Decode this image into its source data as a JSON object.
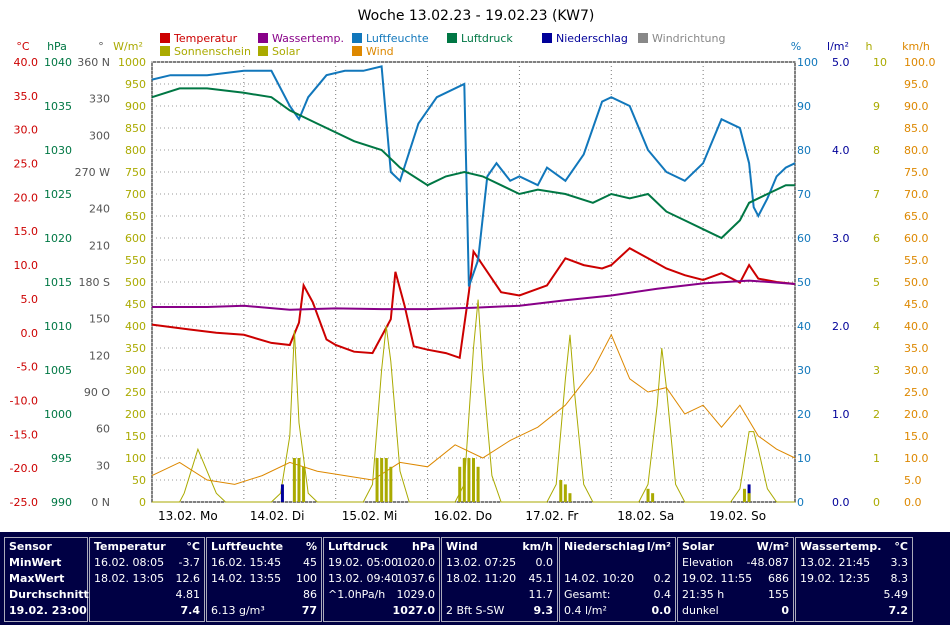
{
  "title": "Woche 13.02.23 - 19.02.23 (KW7)",
  "legend": [
    {
      "label": "Temperatur",
      "color": "#cc0000"
    },
    {
      "label": "Wassertemp.",
      "color": "#880088"
    },
    {
      "label": "Luftfeuchte",
      "color": "#1177bb"
    },
    {
      "label": "Luftdruck",
      "color": "#007744"
    },
    {
      "label": "Niederschlag",
      "color": "#000099"
    },
    {
      "label": "Windrichtung",
      "color": "#888888"
    },
    {
      "label": "Sonnenschein",
      "color": "#aaaa00"
    },
    {
      "label": "Solar",
      "color": "#aaaa00"
    },
    {
      "label": "Wind",
      "color": "#dd8800"
    }
  ],
  "axes": {
    "temp": {
      "unit": "°C",
      "color": "#cc0000",
      "ticks": [
        "40.0",
        "35.0",
        "30.0",
        "25.0",
        "20.0",
        "15.0",
        "10.0",
        "5.0",
        "0.0",
        "-5.0",
        "-10.0",
        "-15.0",
        "-20.0",
        "-25.0"
      ]
    },
    "pressure": {
      "unit": "hPa",
      "color": "#007744",
      "ticks": [
        "1040",
        "1035",
        "1030",
        "1025",
        "1020",
        "1015",
        "1010",
        "1005",
        "1000",
        "995",
        "990"
      ]
    },
    "direction": {
      "unit": "°",
      "color": "#555555",
      "ticks": [
        "360 N",
        "330",
        "300",
        "270 W",
        "240",
        "210",
        "180 S",
        "150",
        "120",
        "90 O",
        "60",
        "30",
        "0 N"
      ]
    },
    "solar": {
      "unit": "W/m²",
      "color": "#aaaa00",
      "ticks": [
        "1000",
        "950",
        "900",
        "850",
        "800",
        "750",
        "700",
        "650",
        "600",
        "550",
        "500",
        "450",
        "400",
        "350",
        "300",
        "250",
        "200",
        "150",
        "100",
        "50",
        "0"
      ]
    },
    "humidity": {
      "unit": "%",
      "color": "#1177bb",
      "ticks": [
        "100",
        "90",
        "80",
        "70",
        "60",
        "50",
        "40",
        "30",
        "20",
        "10",
        "0"
      ]
    },
    "rain": {
      "unit": "l/m²",
      "color": "#000099",
      "ticks": [
        "5.0",
        "4.0",
        "3.0",
        "2.0",
        "1.0",
        "0.0"
      ]
    },
    "sun": {
      "unit": "h",
      "color": "#aaaa00",
      "ticks": [
        "10",
        "9",
        "8",
        "7",
        "6",
        "5",
        "4",
        "3",
        "2",
        "1",
        "0"
      ]
    },
    "wind": {
      "unit": "km/h",
      "color": "#dd8800",
      "ticks": [
        "100.0",
        "95.0",
        "90.0",
        "85.0",
        "80.0",
        "75.0",
        "70.0",
        "65.0",
        "60.0",
        "55.0",
        "50.0",
        "45.0",
        "40.0",
        "35.0",
        "30.0",
        "25.0",
        "20.0",
        "15.0",
        "10.0",
        "5.0",
        "0.0"
      ]
    }
  },
  "x_labels": [
    "13.02.  Mo",
    "14.02.  Di",
    "15.02.  Mi",
    "16.02.  Do",
    "17.02.  Fr",
    "18.02.  Sa",
    "19.02.  So"
  ],
  "chart_data": {
    "type": "line",
    "title": "Woche 13.02.23 - 19.02.23 (KW7)",
    "x_unit": "days since 13.02. 00:00",
    "xlim": [
      0,
      7
    ],
    "series": [
      {
        "name": "Temperatur",
        "unit": "°C",
        "ylim": [
          -25,
          40
        ],
        "x": [
          0,
          0.4,
          0.7,
          1.0,
          1.3,
          1.5,
          1.6,
          1.65,
          1.75,
          1.9,
          2.0,
          2.2,
          2.4,
          2.6,
          2.65,
          2.75,
          2.85,
          3.0,
          3.2,
          3.35,
          3.45,
          3.5,
          3.6,
          3.8,
          4.0,
          4.3,
          4.5,
          4.7,
          4.9,
          5.0,
          5.2,
          5.4,
          5.6,
          5.8,
          6.0,
          6.2,
          6.4,
          6.5,
          6.6,
          6.8,
          7.0
        ],
        "y": [
          1.2,
          0.5,
          0.0,
          -0.3,
          -1.5,
          -1.8,
          1.5,
          7.0,
          4.5,
          -1.0,
          -1.8,
          -2.8,
          -3.0,
          2.0,
          9.0,
          4.0,
          -2.0,
          -2.5,
          -3.0,
          -3.7,
          6.0,
          12.0,
          10.0,
          6.0,
          5.5,
          7.0,
          11.0,
          10.0,
          9.5,
          10.0,
          12.5,
          11.0,
          9.5,
          8.5,
          7.8,
          8.8,
          7.4,
          10.0,
          8.0,
          7.5,
          7.2
        ]
      },
      {
        "name": "Wassertemp.",
        "unit": "°C",
        "ylim": [
          -25,
          40
        ],
        "x": [
          0,
          0.6,
          1.0,
          1.5,
          2.0,
          2.5,
          3.0,
          3.5,
          4.0,
          4.5,
          5.0,
          5.5,
          6.0,
          6.5,
          7.0
        ],
        "y": [
          3.8,
          3.8,
          4.0,
          3.4,
          3.6,
          3.5,
          3.5,
          3.7,
          4.0,
          4.8,
          5.5,
          6.5,
          7.3,
          7.7,
          7.2
        ]
      },
      {
        "name": "Luftfeuchte",
        "unit": "%",
        "ylim": [
          0,
          100
        ],
        "x": [
          0,
          0.2,
          0.6,
          1.0,
          1.3,
          1.5,
          1.6,
          1.7,
          1.9,
          2.1,
          2.3,
          2.5,
          2.6,
          2.7,
          2.9,
          3.1,
          3.4,
          3.45,
          3.55,
          3.65,
          3.75,
          3.9,
          4.0,
          4.2,
          4.3,
          4.5,
          4.7,
          4.8,
          4.9,
          5.0,
          5.2,
          5.4,
          5.6,
          5.8,
          6.0,
          6.2,
          6.4,
          6.5,
          6.55,
          6.6,
          6.7,
          6.8,
          6.9,
          7.0
        ],
        "y": [
          96,
          97,
          97,
          98,
          98,
          90,
          87,
          92,
          97,
          98,
          98,
          99,
          75,
          73,
          86,
          92,
          95,
          49,
          55,
          74,
          77,
          73,
          74,
          72,
          76,
          73,
          79,
          85,
          91,
          92,
          90,
          80,
          75,
          73,
          77,
          87,
          85,
          77,
          67,
          65,
          69,
          74,
          76,
          77
        ]
      },
      {
        "name": "Luftdruck",
        "unit": "hPa",
        "ylim": [
          990,
          1040
        ],
        "x": [
          0,
          0.3,
          0.6,
          1.0,
          1.3,
          1.5,
          1.8,
          2.0,
          2.2,
          2.5,
          2.7,
          3.0,
          3.2,
          3.4,
          3.6,
          3.8,
          4.0,
          4.2,
          4.5,
          4.8,
          5.0,
          5.2,
          5.4,
          5.6,
          5.8,
          6.0,
          6.2,
          6.4,
          6.5,
          6.7,
          6.9,
          7.0
        ],
        "y": [
          1036,
          1037,
          1037,
          1036.5,
          1036,
          1034.5,
          1033,
          1032,
          1031,
          1030,
          1028,
          1026,
          1027,
          1027.5,
          1027,
          1026,
          1025,
          1025.5,
          1025,
          1024,
          1025,
          1024.5,
          1025,
          1023,
          1022,
          1021,
          1020,
          1022,
          1024,
          1025,
          1026,
          1026
        ]
      },
      {
        "name": "Solar",
        "unit": "W/m²",
        "ylim": [
          0,
          1000
        ],
        "x": [
          0,
          0.3,
          0.35,
          0.5,
          0.7,
          0.8,
          1.3,
          1.4,
          1.5,
          1.55,
          1.6,
          1.7,
          1.8,
          2.3,
          2.4,
          2.5,
          2.55,
          2.6,
          2.7,
          2.8,
          3.3,
          3.4,
          3.5,
          3.55,
          3.6,
          3.7,
          3.8,
          4.3,
          4.4,
          4.5,
          4.55,
          4.6,
          4.7,
          4.8,
          5.3,
          5.4,
          5.5,
          5.55,
          5.6,
          5.7,
          5.8,
          6.3,
          6.4,
          6.5,
          6.55,
          6.6,
          6.7,
          6.8,
          7.0
        ],
        "y": [
          0,
          0,
          20,
          120,
          20,
          0,
          0,
          20,
          150,
          390,
          180,
          20,
          0,
          0,
          40,
          300,
          400,
          320,
          70,
          0,
          0,
          40,
          350,
          460,
          300,
          60,
          0,
          0,
          40,
          280,
          380,
          250,
          40,
          0,
          0,
          40,
          220,
          350,
          260,
          40,
          0,
          0,
          30,
          160,
          160,
          120,
          30,
          0,
          0
        ]
      },
      {
        "name": "Wind",
        "unit": "km/h",
        "ylim": [
          0,
          100
        ],
        "x": [
          0,
          0.3,
          0.6,
          0.9,
          1.2,
          1.5,
          1.8,
          2.1,
          2.4,
          2.7,
          3.0,
          3.3,
          3.6,
          3.9,
          4.2,
          4.5,
          4.8,
          5.0,
          5.2,
          5.4,
          5.6,
          5.8,
          6.0,
          6.2,
          6.4,
          6.6,
          6.8,
          7.0
        ],
        "y": [
          6,
          9,
          5,
          4,
          6,
          9,
          7,
          6,
          5,
          9,
          8,
          13,
          10,
          14,
          17,
          22,
          30,
          38,
          28,
          25,
          26,
          20,
          22,
          17,
          22,
          15,
          12,
          10
        ]
      },
      {
        "name": "Niederschlag",
        "unit": "l/m²",
        "ylim": [
          0,
          5
        ],
        "x": [
          1.42,
          6.5
        ],
        "y": [
          0.2,
          0.2
        ]
      },
      {
        "name": "Sonnenschein",
        "unit": "h",
        "ylim": [
          0,
          10
        ],
        "x": [
          1.55,
          1.6,
          1.65,
          2.45,
          2.5,
          2.55,
          2.6,
          3.35,
          3.4,
          3.45,
          3.5,
          3.55,
          4.45,
          4.5,
          4.55,
          5.4,
          5.45,
          6.45,
          6.5
        ],
        "y": [
          1,
          1,
          0.8,
          1,
          1,
          1,
          0.8,
          0.8,
          1,
          1,
          1,
          0.8,
          0.5,
          0.4,
          0.2,
          0.3,
          0.2,
          0.3,
          0.2
        ]
      }
    ]
  },
  "table": {
    "sensor": {
      "head": "Sensor",
      "rows": [
        "MinWert",
        "MaxWert",
        "Durchschnitt",
        "19.02. 23:00"
      ]
    },
    "temperatur": {
      "head": "Temperatur",
      "unit": "°C",
      "rows": [
        [
          "16.02.  08:05",
          "-3.7"
        ],
        [
          "18.02.  13:05",
          "12.6"
        ],
        [
          "",
          "4.81"
        ],
        [
          "",
          "7.4"
        ]
      ]
    },
    "luftfeuchte": {
      "head": "Luftfeuchte",
      "unit": "%",
      "rows": [
        [
          "16.02.  15:45",
          "45"
        ],
        [
          "14.02.  13:55",
          "100"
        ],
        [
          "",
          "86"
        ],
        [
          "6.13 g/m³",
          "77"
        ]
      ]
    },
    "luftdruck": {
      "head": "Luftdruck",
      "unit": "hPa",
      "rows": [
        [
          "19.02.  05:00",
          "1020.0"
        ],
        [
          "13.02.  09:40",
          "1037.6"
        ],
        [
          "^1.0hPa/h",
          "1029.0"
        ],
        [
          "",
          "1027.0"
        ]
      ]
    },
    "wind": {
      "head": "Wind",
      "unit": "km/h",
      "rows": [
        [
          "13.02.  07:25",
          "0.0"
        ],
        [
          "18.02.  11:20",
          "45.1"
        ],
        [
          "",
          "11.7"
        ],
        [
          "2 Bft S-SW",
          "9.3"
        ]
      ]
    },
    "niederschlag": {
      "head": "Niederschlag",
      "unit": "l/m²",
      "rows": [
        [
          "",
          ""
        ],
        [
          "14.02.  10:20",
          "0.2"
        ],
        [
          "Gesamt:",
          "0.4"
        ],
        [
          "0.4 l/m²",
          "0.0"
        ]
      ]
    },
    "solar": {
      "head": "Solar",
      "unit": "W/m²",
      "rows": [
        [
          "Elevation",
          "-48.087"
        ],
        [
          "19.02.  11:55",
          "686"
        ],
        [
          "21:35 h",
          "155"
        ],
        [
          "dunkel",
          "0"
        ]
      ]
    },
    "wassertemp": {
      "head": "Wassertemp.",
      "unit": "°C",
      "rows": [
        [
          "13.02.  21:45",
          "3.3"
        ],
        [
          "19.02.  12:35",
          "8.3"
        ],
        [
          "",
          "5.49"
        ],
        [
          "",
          "7.2"
        ]
      ]
    }
  }
}
